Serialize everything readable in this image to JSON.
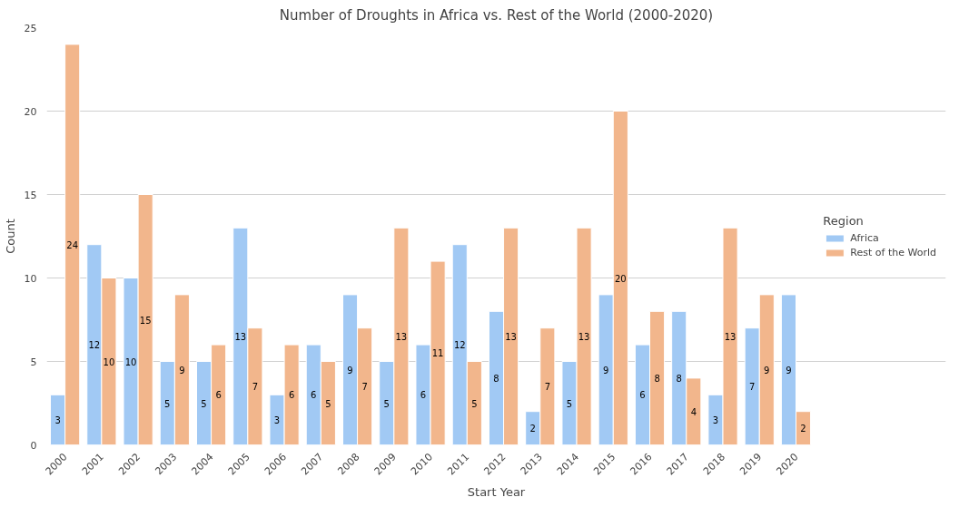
{
  "chart_data": {
    "type": "bar",
    "title": "Number of Droughts in Africa vs. Rest of the World (2000-2020)",
    "xlabel": "Start Year",
    "ylabel": "Count",
    "legend_title": "Region",
    "categories": [
      "2000",
      "2001",
      "2002",
      "2003",
      "2004",
      "2005",
      "2006",
      "2007",
      "2008",
      "2009",
      "2010",
      "2011",
      "2012",
      "2013",
      "2014",
      "2015",
      "2016",
      "2017",
      "2018",
      "2019",
      "2020"
    ],
    "series": [
      {
        "name": "Africa",
        "color": "#a1c9f4",
        "values": [
          3,
          12,
          10,
          5,
          5,
          13,
          3,
          6,
          9,
          5,
          6,
          12,
          8,
          2,
          5,
          9,
          6,
          8,
          3,
          7,
          9
        ]
      },
      {
        "name": "Rest of the World",
        "color": "#f2b68c",
        "values": [
          24,
          10,
          15,
          9,
          6,
          7,
          6,
          5,
          7,
          13,
          11,
          5,
          13,
          7,
          13,
          20,
          8,
          4,
          13,
          9,
          2
        ]
      }
    ],
    "ylim": [
      0,
      25
    ],
    "yticks": [
      0,
      5,
      10,
      15,
      20,
      25
    ],
    "grid": "y",
    "legend": "right",
    "data_labels": true
  }
}
